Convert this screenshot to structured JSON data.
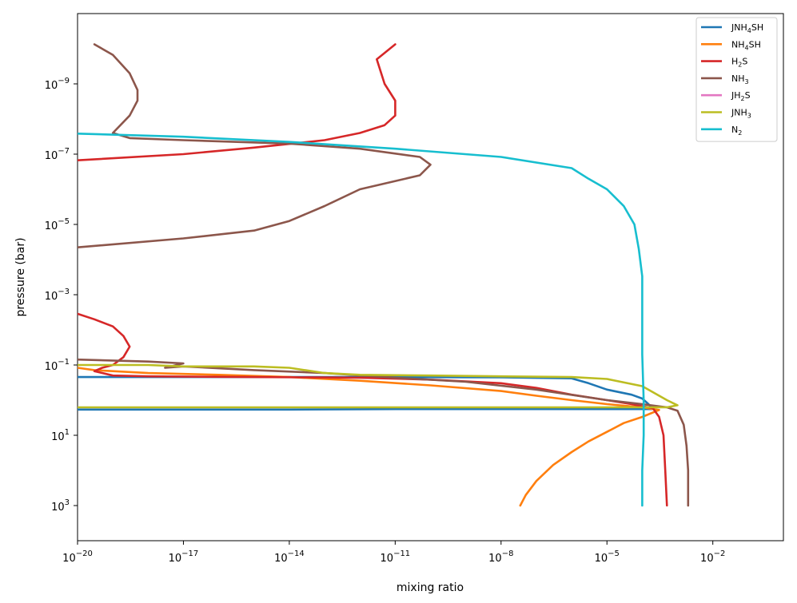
{
  "chart_data": {
    "type": "line",
    "xlabel": "mixing ratio",
    "ylabel": "pressure (bar)",
    "x_scale": "log",
    "y_scale": "log",
    "y_inverted": true,
    "xlim": [
      1e-20,
      1.0
    ],
    "ylim": [
      10000.0,
      1e-11
    ],
    "x_ticks": [
      {
        "value": 1e-20,
        "base": "10",
        "exp": "−20"
      },
      {
        "value": 1e-17,
        "base": "10",
        "exp": "−17"
      },
      {
        "value": 1e-14,
        "base": "10",
        "exp": "−14"
      },
      {
        "value": 1e-11,
        "base": "10",
        "exp": "−11"
      },
      {
        "value": 1e-08,
        "base": "10",
        "exp": "−8"
      },
      {
        "value": 1e-05,
        "base": "10",
        "exp": "−5"
      },
      {
        "value": 0.01,
        "base": "10",
        "exp": "−2"
      }
    ],
    "y_ticks": [
      {
        "value": 1e-09,
        "base": "10",
        "exp": "−9"
      },
      {
        "value": 1e-07,
        "base": "10",
        "exp": "−7"
      },
      {
        "value": 1e-05,
        "base": "10",
        "exp": "−5"
      },
      {
        "value": 0.001,
        "base": "10",
        "exp": "−3"
      },
      {
        "value": 0.1,
        "base": "10",
        "exp": "−1"
      },
      {
        "value": 10,
        "base": "10",
        "exp": "1"
      },
      {
        "value": 1000,
        "base": "10",
        "exp": "3"
      }
    ],
    "legend": {
      "placement": "top-right",
      "entries": [
        {
          "pre": "JNH",
          "sub": "4",
          "post": "SH",
          "color": "#1f77b4"
        },
        {
          "pre": "NH",
          "sub": "4",
          "post": "SH",
          "color": "#ff7f0e"
        },
        {
          "pre": "H",
          "sub": "2",
          "post": "S",
          "color": "#d62728"
        },
        {
          "pre": "NH",
          "sub": "3",
          "post": "",
          "color": "#8c564b"
        },
        {
          "pre": "JH",
          "sub": "2",
          "post": "S",
          "color": "#e377c2"
        },
        {
          "pre": "JNH",
          "sub": "3",
          "post": "",
          "color": "#bcbd22"
        },
        {
          "pre": "N",
          "sub": "2",
          "post": "",
          "color": "#17becf"
        }
      ]
    },
    "series": [
      {
        "id": "JNH4SH",
        "color": "#1f77b4",
        "points": [
          [
            1e-20,
            0.22
          ],
          [
            1e-17,
            0.22
          ],
          [
            1e-14,
            0.22
          ],
          [
            1e-11,
            0.22
          ],
          [
            1e-08,
            0.225
          ],
          [
            1e-06,
            0.24
          ],
          [
            3e-06,
            0.33
          ],
          [
            1e-05,
            0.5
          ],
          [
            5e-05,
            0.7
          ],
          [
            0.0001,
            0.9
          ],
          [
            0.00015,
            1.3
          ],
          [
            0.0002,
            1.8
          ],
          [
            1e-05,
            1.8
          ],
          [
            1e-08,
            1.8
          ],
          [
            1e-11,
            1.8
          ],
          [
            1e-14,
            1.85
          ],
          [
            1e-17,
            1.85
          ],
          [
            1e-20,
            1.85
          ]
        ]
      },
      {
        "id": "NH4SH",
        "color": "#ff7f0e",
        "points": [
          [
            1e-20,
            0.12
          ],
          [
            3e-20,
            0.14
          ],
          [
            1e-18,
            0.17
          ],
          [
            1e-16,
            0.19
          ],
          [
            1e-14,
            0.22
          ],
          [
            1e-12,
            0.28
          ],
          [
            1e-10,
            0.38
          ],
          [
            1e-08,
            0.55
          ],
          [
            1e-07,
            0.75
          ],
          [
            1e-06,
            1.0
          ],
          [
            1e-05,
            1.3
          ],
          [
            0.0001,
            1.6
          ],
          [
            0.0003,
            1.9
          ],
          [
            0.0001,
            3
          ],
          [
            3e-05,
            4.5
          ],
          [
            1e-05,
            8
          ],
          [
            3e-06,
            15
          ],
          [
            1e-06,
            30
          ],
          [
            3e-07,
            70
          ],
          [
            1e-07,
            200
          ],
          [
            5e-08,
            500
          ],
          [
            3.5e-08,
            1000
          ]
        ]
      },
      {
        "id": "H2S",
        "color": "#d62728",
        "points": [
          [
            1e-11,
            7.5e-11
          ],
          [
            3e-12,
            2e-10
          ],
          [
            5e-12,
            1e-09
          ],
          [
            1e-11,
            3e-09
          ],
          [
            1e-11,
            8e-09
          ],
          [
            5e-12,
            1.5e-08
          ],
          [
            1e-12,
            2.5e-08
          ],
          [
            1e-13,
            4e-08
          ],
          [
            1e-15,
            6.5e-08
          ],
          [
            1e-17,
            1e-07
          ],
          [
            1e-20,
            1.5e-07
          ],
          null,
          [
            1e-20,
            0.0035
          ],
          [
            3e-20,
            0.005
          ],
          [
            1e-19,
            0.008
          ],
          [
            2e-19,
            0.015
          ],
          [
            3e-19,
            0.03
          ],
          [
            2e-19,
            0.06
          ],
          [
            1e-19,
            0.1
          ],
          [
            5e-20,
            0.12
          ],
          [
            3e-20,
            0.15
          ],
          [
            1e-19,
            0.2
          ],
          [
            1e-18,
            0.21
          ],
          [
            1e-15,
            0.22
          ],
          [
            1e-12,
            0.23
          ],
          [
            1e-10,
            0.26
          ],
          [
            1e-08,
            0.33
          ],
          [
            1e-07,
            0.45
          ],
          [
            1e-06,
            0.7
          ],
          [
            1e-05,
            1.0
          ],
          [
            5e-05,
            1.3
          ],
          [
            0.0001,
            1.5
          ],
          [
            0.0002,
            1.7
          ],
          [
            0.0003,
            3
          ],
          [
            0.0004,
            10
          ],
          [
            0.00045,
            100
          ],
          [
            0.0005,
            1000
          ]
        ]
      },
      {
        "id": "NH3",
        "color": "#8c564b",
        "points": [
          [
            3e-20,
            7.5e-11
          ],
          [
            1e-19,
            1.5e-10
          ],
          [
            3e-19,
            5e-10
          ],
          [
            5e-19,
            1.5e-09
          ],
          [
            5e-19,
            3e-09
          ],
          [
            3e-19,
            8e-09
          ],
          [
            1e-19,
            2.5e-08
          ],
          [
            3e-19,
            3.5e-08
          ],
          [
            1e-17,
            4e-08
          ],
          [
            1e-14,
            5e-08
          ],
          [
            1e-12,
            7e-08
          ],
          [
            5e-11,
            1.2e-07
          ],
          [
            1e-10,
            2e-07
          ],
          [
            5e-11,
            4e-07
          ],
          [
            1e-12,
            1e-06
          ],
          [
            1e-13,
            3e-06
          ],
          [
            1e-14,
            8e-06
          ],
          [
            1e-15,
            1.5e-05
          ],
          [
            1e-17,
            2.5e-05
          ],
          [
            1e-20,
            4.5e-05
          ],
          null,
          [
            1e-20,
            0.07
          ],
          [
            1e-18,
            0.08
          ],
          [
            1e-17,
            0.09
          ],
          [
            3e-18,
            0.12
          ],
          [
            1e-17,
            0.11
          ],
          [
            1e-15,
            0.14
          ],
          [
            1e-13,
            0.17
          ],
          [
            1e-11,
            0.23
          ],
          [
            1e-09,
            0.3
          ],
          [
            1e-07,
            0.5
          ],
          [
            1e-05,
            1.0
          ],
          [
            0.0001,
            1.3
          ],
          [
            0.0005,
            1.6
          ],
          [
            0.001,
            2
          ],
          [
            0.0015,
            5
          ],
          [
            0.0018,
            20
          ],
          [
            0.002,
            100
          ],
          [
            0.002,
            1000
          ]
        ]
      },
      {
        "id": "JH2S",
        "color": "#e377c2",
        "points": []
      },
      {
        "id": "JNH3",
        "color": "#bcbd22",
        "points": [
          [
            1e-20,
            0.1
          ],
          [
            1e-19,
            0.1
          ],
          [
            1e-18,
            0.1
          ],
          [
            1e-17,
            0.11
          ],
          [
            1e-16,
            0.11
          ],
          [
            1e-15,
            0.11
          ],
          [
            1e-14,
            0.12
          ],
          [
            1e-13,
            0.17
          ],
          [
            1e-12,
            0.19
          ],
          [
            1e-10,
            0.2
          ],
          [
            1e-08,
            0.21
          ],
          [
            1e-06,
            0.22
          ],
          [
            1e-05,
            0.25
          ],
          [
            0.0001,
            0.4
          ],
          [
            0.0005,
            1.0
          ],
          [
            0.001,
            1.4
          ],
          [
            0.0005,
            1.6
          ],
          [
            1e-06,
            1.6
          ],
          [
            1e-10,
            1.6
          ],
          [
            1e-14,
            1.6
          ],
          [
            1e-20,
            1.6
          ]
        ]
      },
      {
        "id": "N2",
        "color": "#17becf",
        "points": [
          [
            1e-20,
            2.6e-08
          ],
          [
            1e-17,
            3.2e-08
          ],
          [
            1e-14,
            4.5e-08
          ],
          [
            1e-11,
            7e-08
          ],
          [
            1e-08,
            1.2e-07
          ],
          [
            1e-06,
            2.5e-07
          ],
          [
            3e-06,
            5e-07
          ],
          [
            1e-05,
            1e-06
          ],
          [
            3e-05,
            3e-06
          ],
          [
            6e-05,
            1e-05
          ],
          [
            8e-05,
            5e-05
          ],
          [
            0.0001,
            0.0003
          ],
          [
            0.0001,
            0.003
          ],
          [
            0.0001,
            0.05
          ],
          [
            0.00011,
            1
          ],
          [
            0.00011,
            10
          ],
          [
            0.0001,
            100
          ],
          [
            0.0001,
            1000
          ]
        ]
      }
    ],
    "grid": false
  }
}
